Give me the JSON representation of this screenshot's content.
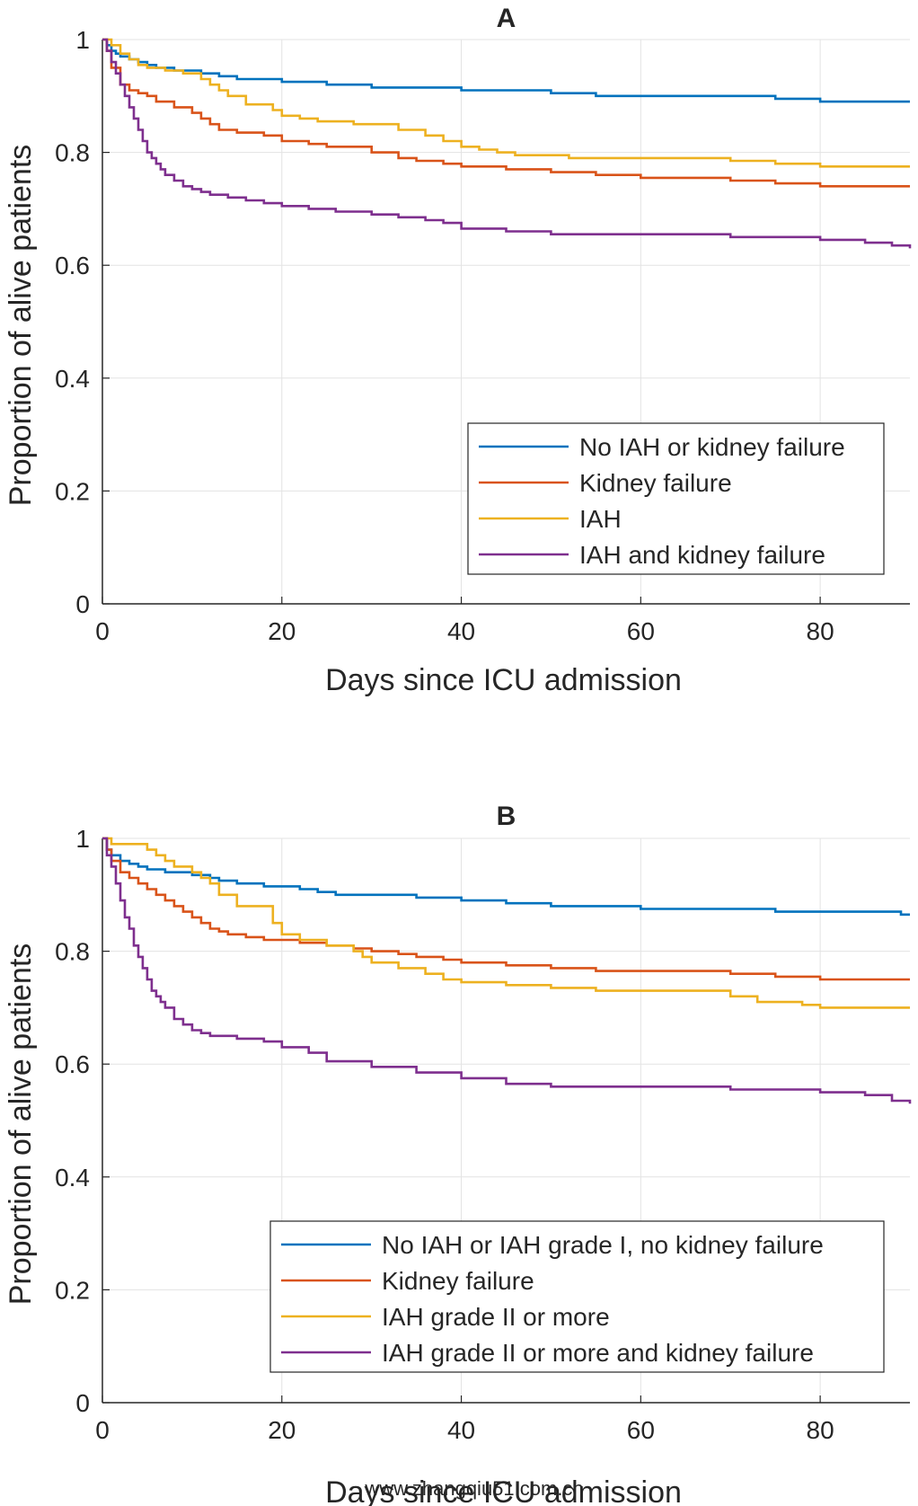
{
  "watermark": "www.zhangqiu51.com.cn",
  "colors": {
    "blue": "#0072BD",
    "orange": "#D95319",
    "yellow": "#EDB120",
    "purple": "#7E2F8E",
    "grid": "#e3e3e3",
    "axis": "#262626"
  },
  "chart_data": [
    {
      "type": "line",
      "title": "A",
      "xlabel": "Days since ICU admission",
      "ylabel": "Proportion of alive patients",
      "xlim": [
        0,
        90
      ],
      "ylim": [
        0,
        1
      ],
      "xticks": [
        0,
        20,
        40,
        60,
        80
      ],
      "yticks": [
        0,
        0.2,
        0.4,
        0.6,
        0.8,
        1
      ],
      "ytick_labels": [
        "0",
        "0.2",
        "0.4",
        "0.6",
        "0.8",
        "1"
      ],
      "xtick_labels": [
        "0",
        "20",
        "40",
        "60",
        "80"
      ],
      "grid": true,
      "legend_position": "lower-right",
      "series": [
        {
          "name": "No IAH or kidney failure",
          "color": "#0072BD",
          "x": [
            0,
            0.5,
            1,
            1.5,
            2,
            3,
            4,
            5,
            6,
            8,
            11,
            13,
            15,
            18,
            20,
            22,
            25,
            30,
            35,
            40,
            45,
            50,
            52,
            55,
            60,
            65,
            70,
            75,
            80,
            90
          ],
          "y": [
            1,
            0.99,
            0.98,
            0.975,
            0.97,
            0.965,
            0.96,
            0.955,
            0.95,
            0.945,
            0.94,
            0.935,
            0.93,
            0.93,
            0.925,
            0.925,
            0.92,
            0.915,
            0.915,
            0.91,
            0.91,
            0.905,
            0.905,
            0.9,
            0.9,
            0.9,
            0.9,
            0.895,
            0.89,
            0.89
          ]
        },
        {
          "name": "Kidney failure",
          "color": "#D95319",
          "x": [
            0,
            0.5,
            1,
            2,
            3,
            4,
            5,
            6,
            8,
            10,
            11,
            12,
            13,
            15,
            18,
            20,
            23,
            25,
            30,
            33,
            35,
            38,
            40,
            45,
            50,
            55,
            60,
            65,
            70,
            75,
            80,
            90
          ],
          "y": [
            1,
            0.98,
            0.95,
            0.92,
            0.91,
            0.905,
            0.9,
            0.89,
            0.88,
            0.87,
            0.86,
            0.85,
            0.84,
            0.835,
            0.83,
            0.82,
            0.815,
            0.81,
            0.8,
            0.79,
            0.785,
            0.78,
            0.775,
            0.77,
            0.765,
            0.76,
            0.755,
            0.755,
            0.75,
            0.745,
            0.74,
            0.74
          ]
        },
        {
          "name": "IAH",
          "color": "#EDB120",
          "x": [
            0,
            1,
            2,
            3,
            4,
            5,
            7,
            9,
            11,
            12,
            13,
            14,
            16,
            19,
            20,
            22,
            24,
            28,
            33,
            36,
            38,
            40,
            42,
            44,
            46,
            50,
            52,
            55,
            60,
            70,
            75,
            80,
            90
          ],
          "y": [
            1,
            0.99,
            0.975,
            0.965,
            0.955,
            0.95,
            0.945,
            0.94,
            0.93,
            0.92,
            0.91,
            0.9,
            0.885,
            0.875,
            0.865,
            0.86,
            0.855,
            0.85,
            0.84,
            0.83,
            0.82,
            0.81,
            0.805,
            0.8,
            0.795,
            0.795,
            0.79,
            0.79,
            0.79,
            0.785,
            0.78,
            0.775,
            0.775
          ]
        },
        {
          "name": "IAH and kidney failure",
          "color": "#7E2F8E",
          "x": [
            0,
            0.5,
            1,
            1.5,
            2,
            2.5,
            3,
            3.5,
            4,
            4.5,
            5,
            5.5,
            6,
            6.5,
            7,
            8,
            9,
            10,
            11,
            12,
            14,
            16,
            18,
            20,
            23,
            26,
            30,
            33,
            36,
            38,
            40,
            45,
            50,
            60,
            70,
            80,
            85,
            88,
            90
          ],
          "y": [
            1,
            0.98,
            0.96,
            0.94,
            0.92,
            0.9,
            0.88,
            0.86,
            0.84,
            0.82,
            0.8,
            0.79,
            0.78,
            0.77,
            0.76,
            0.75,
            0.74,
            0.735,
            0.73,
            0.725,
            0.72,
            0.715,
            0.71,
            0.705,
            0.7,
            0.695,
            0.69,
            0.685,
            0.68,
            0.675,
            0.665,
            0.66,
            0.655,
            0.655,
            0.65,
            0.645,
            0.64,
            0.635,
            0.63
          ]
        }
      ]
    },
    {
      "type": "line",
      "title": "B",
      "xlabel": "Days since ICU admission",
      "ylabel": "Proportion of alive patients",
      "xlim": [
        0,
        90
      ],
      "ylim": [
        0,
        1
      ],
      "xticks": [
        0,
        20,
        40,
        60,
        80
      ],
      "yticks": [
        0,
        0.2,
        0.4,
        0.6,
        0.8,
        1
      ],
      "ytick_labels": [
        "0",
        "0.2",
        "0.4",
        "0.6",
        "0.8",
        "1"
      ],
      "xtick_labels": [
        "0",
        "20",
        "40",
        "60",
        "80"
      ],
      "grid": true,
      "legend_position": "lower-right",
      "series": [
        {
          "name": "No IAH or IAH grade I, no kidney failure",
          "color": "#0072BD",
          "x": [
            0,
            0.5,
            1,
            2,
            3,
            4,
            5,
            7,
            10,
            12,
            13,
            15,
            18,
            20,
            22,
            24,
            26,
            30,
            35,
            40,
            45,
            50,
            55,
            60,
            70,
            75,
            80,
            89,
            90
          ],
          "y": [
            1,
            0.98,
            0.97,
            0.96,
            0.955,
            0.95,
            0.945,
            0.94,
            0.935,
            0.93,
            0.925,
            0.92,
            0.915,
            0.915,
            0.91,
            0.905,
            0.9,
            0.9,
            0.895,
            0.89,
            0.885,
            0.88,
            0.88,
            0.875,
            0.875,
            0.87,
            0.87,
            0.865,
            0.865
          ]
        },
        {
          "name": "Kidney failure",
          "color": "#D95319",
          "x": [
            0,
            0.5,
            1,
            2,
            3,
            4,
            5,
            6,
            7,
            8,
            9,
            10,
            11,
            12,
            13,
            14,
            16,
            18,
            20,
            22,
            25,
            28,
            30,
            33,
            35,
            38,
            40,
            45,
            50,
            55,
            60,
            70,
            75,
            80,
            90
          ],
          "y": [
            1,
            0.98,
            0.96,
            0.94,
            0.93,
            0.92,
            0.91,
            0.9,
            0.89,
            0.88,
            0.87,
            0.86,
            0.85,
            0.84,
            0.835,
            0.83,
            0.825,
            0.82,
            0.82,
            0.815,
            0.81,
            0.805,
            0.8,
            0.795,
            0.79,
            0.785,
            0.78,
            0.775,
            0.77,
            0.765,
            0.765,
            0.76,
            0.755,
            0.75,
            0.75
          ]
        },
        {
          "name": "IAH grade II or more",
          "color": "#EDB120",
          "x": [
            0,
            1,
            5,
            6,
            7,
            8,
            10,
            11,
            12,
            13,
            15,
            19,
            20,
            22,
            25,
            28,
            29,
            30,
            33,
            36,
            38,
            40,
            45,
            50,
            55,
            60,
            70,
            73,
            78,
            80,
            90
          ],
          "y": [
            1,
            0.99,
            0.98,
            0.97,
            0.96,
            0.95,
            0.94,
            0.93,
            0.92,
            0.9,
            0.88,
            0.85,
            0.83,
            0.82,
            0.81,
            0.8,
            0.79,
            0.78,
            0.77,
            0.76,
            0.75,
            0.745,
            0.74,
            0.735,
            0.73,
            0.73,
            0.72,
            0.71,
            0.705,
            0.7,
            0.7
          ]
        },
        {
          "name": "IAH grade II or more and kidney failure",
          "color": "#7E2F8E",
          "x": [
            0,
            0.5,
            1,
            1.5,
            2,
            2.5,
            3,
            3.5,
            4,
            4.5,
            5,
            5.5,
            6,
            6.5,
            7,
            8,
            9,
            10,
            11,
            12,
            15,
            18,
            20,
            23,
            25,
            30,
            35,
            40,
            45,
            50,
            60,
            70,
            80,
            85,
            88,
            90
          ],
          "y": [
            1,
            0.97,
            0.95,
            0.92,
            0.89,
            0.86,
            0.84,
            0.81,
            0.79,
            0.77,
            0.75,
            0.73,
            0.72,
            0.71,
            0.7,
            0.68,
            0.67,
            0.66,
            0.655,
            0.65,
            0.645,
            0.64,
            0.63,
            0.62,
            0.605,
            0.595,
            0.585,
            0.575,
            0.565,
            0.56,
            0.56,
            0.555,
            0.55,
            0.545,
            0.535,
            0.53
          ]
        }
      ]
    }
  ]
}
